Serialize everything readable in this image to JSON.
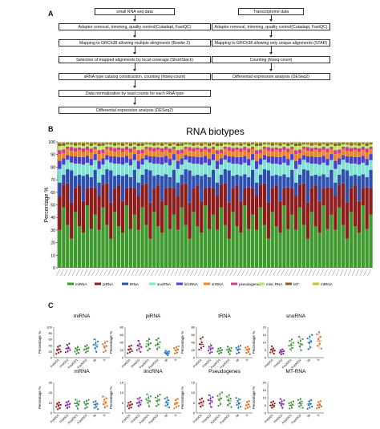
{
  "panels": {
    "a": "A",
    "b": "B",
    "c": "C"
  },
  "flow_left": [
    "small RNA seq data",
    "Adaptor removal, trimming, quality control(Cutadapt, FastQC)",
    "Mapping to GRCh38 allowing  multiple alingments (Bowtie 2)",
    "Selection of mapped alignments by local coverage (ShortStack)",
    "sRNA type catalog construction, counting (htseq-count)",
    "Data normalization by read counts for each RNA type",
    "Differential expression analysis (DESeq2)"
  ],
  "flow_right": [
    "Transcriptome data",
    "Adaptor removal, trimming, quality control(Cutadapt, FastQC)",
    "Mapping to GRCh38 allowing only unique alignments (STAR)",
    "Counting (htseq-count)",
    "Differential expression analysis (DESeq2)"
  ],
  "chart_data": [
    {
      "type": "bar",
      "stacked": true,
      "title": "RNA biotypes",
      "ylabel": "Percentage %",
      "ylim": [
        0,
        100
      ],
      "yticks": [
        "0",
        "10",
        "20",
        "30",
        "40",
        "50",
        "60",
        "70",
        "80",
        "90",
        "100"
      ],
      "legend": [
        "miRNA",
        "piRNA",
        "tRNA",
        "snoRNA",
        "lincRNA",
        "snRNA",
        "pseudogenes",
        "misc RNA",
        "MT",
        "mtRNA"
      ],
      "legend_position": "bottom",
      "colors": [
        "#3f9a2e",
        "#8c1d1d",
        "#2d4fb0",
        "#7fe3d3",
        "#4a40cf",
        "#f2821f",
        "#d63a8a",
        "#b7e76a",
        "#8b5a2b",
        "#c8c81a"
      ],
      "n_samples": 80,
      "series_pattern": [
        {
          "name": "miRNA",
          "values": [
            35,
            48,
            30,
            25,
            42,
            38,
            28,
            45,
            33,
            40
          ]
        },
        {
          "name": "piRNA",
          "values": [
            25,
            18,
            35,
            28,
            20,
            30,
            25,
            15,
            32,
            22
          ]
        },
        {
          "name": "tRNA",
          "values": [
            10,
            8,
            12,
            25,
            10,
            8,
            20,
            12,
            8,
            15
          ]
        },
        {
          "name": "snoRNA",
          "values": [
            10,
            8,
            8,
            6,
            10,
            8,
            9,
            10,
            9,
            8
          ]
        },
        {
          "name": "lincRNA",
          "values": [
            6,
            5,
            4,
            5,
            6,
            5,
            6,
            6,
            5,
            5
          ]
        },
        {
          "name": "snRNA",
          "values": [
            5,
            4,
            5,
            4,
            4,
            5,
            4,
            5,
            5,
            4
          ]
        },
        {
          "name": "pseudogenes",
          "values": [
            3,
            3,
            2,
            3,
            3,
            2,
            3,
            3,
            3,
            2
          ]
        },
        {
          "name": "misc RNA",
          "values": [
            3,
            3,
            2,
            2,
            2,
            2,
            2,
            2,
            2,
            2
          ]
        },
        {
          "name": "MT",
          "values": [
            2,
            2,
            1,
            1,
            2,
            1,
            2,
            1,
            2,
            1
          ]
        },
        {
          "name": "mtRNA",
          "values": [
            1,
            1,
            1,
            1,
            1,
            1,
            1,
            1,
            1,
            1
          ]
        }
      ]
    },
    {
      "type": "scatter",
      "ylabel": "Percentage %",
      "categories": [
        "PreOD1",
        "PreOD2",
        "PostOD1",
        "PostOD2",
        "Nt",
        "Ti"
      ],
      "panels": [
        {
          "title": "miRNA",
          "ylim": [
            0,
            100
          ],
          "yticks": [
            "0",
            "20",
            "40",
            "60",
            "80",
            "100"
          ],
          "means": [
            28,
            30,
            27,
            29,
            42,
            38
          ],
          "color_pattern": [
            "#8b1a1a",
            "#7b1fa2",
            "#3d8f3b",
            "#3d8f3b",
            "#1f6fb0",
            "#e06a1b"
          ]
        },
        {
          "title": "piRNA",
          "ylim": [
            0,
            80
          ],
          "yticks": [
            "0",
            "20",
            "40",
            "60",
            "80"
          ],
          "means": [
            22,
            30,
            36,
            34,
            12,
            20
          ]
        },
        {
          "title": "tRNA",
          "ylim": [
            0,
            80
          ],
          "yticks": [
            "0",
            "20",
            "40",
            "60",
            "80"
          ],
          "means": [
            35,
            25,
            18,
            20,
            22,
            20
          ]
        },
        {
          "title": "snoRNA",
          "ylim": [
            0,
            20
          ],
          "yticks": [
            "0",
            "5",
            "10",
            "15",
            "20"
          ],
          "means": [
            5,
            4,
            8,
            9,
            10,
            11
          ]
        },
        {
          "title": "mRNA",
          "ylim": [
            0,
            30
          ],
          "yticks": [
            "0",
            "10",
            "20",
            "30"
          ],
          "means": [
            8,
            8,
            9,
            9,
            8,
            11
          ]
        },
        {
          "title": "lincRNA",
          "ylim": [
            0,
            15
          ],
          "yticks": [
            "0",
            "5",
            "10",
            "15"
          ],
          "means": [
            4,
            5,
            6,
            6,
            5,
            5
          ]
        },
        {
          "title": "Pseudogenes",
          "ylim": [
            0,
            15
          ],
          "yticks": [
            "0",
            "5",
            "10",
            "15"
          ],
          "means": [
            5,
            6,
            7,
            6,
            5,
            4
          ]
        },
        {
          "title": "MT-RNA",
          "ylim": [
            0,
            20
          ],
          "yticks": [
            "0",
            "5",
            "10",
            "15",
            "20"
          ],
          "means": [
            5,
            6,
            5,
            6,
            6,
            5
          ]
        }
      ]
    }
  ]
}
